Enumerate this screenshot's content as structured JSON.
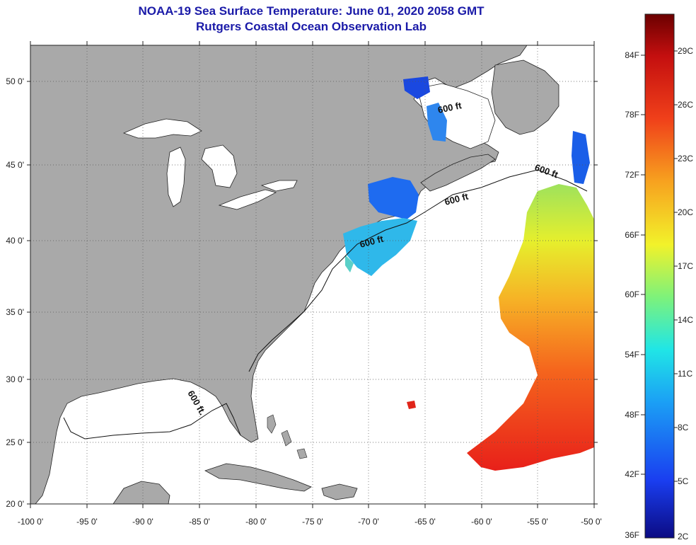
{
  "header": {
    "title": "NOAA-19 Sea Surface Temperature:  June 01, 2020 2058 GMT",
    "subtitle": "Rutgers Coastal Ocean Observation Lab"
  },
  "map": {
    "lon_range": [
      -100,
      -50
    ],
    "lat_range": [
      20,
      52.5
    ],
    "lat_ticks": [
      "50 0'",
      "45 0'",
      "40 0'",
      "35 0'",
      "30 0'",
      "25 0'",
      "20 0'"
    ],
    "lon_ticks": [
      "-100 0'",
      "-95 0'",
      "-90 0'",
      "-85 0'",
      "-80 0'",
      "-75 0'",
      "-70 0'",
      "-65 0'",
      "-60 0'",
      "-55 0'",
      "-50 0'"
    ],
    "contour_labels": [
      "600 ft",
      "600 ft",
      "600 ft",
      "600 ft",
      "600 ft."
    ],
    "colors": {
      "land": "#a9a9a9",
      "grid": "#555555"
    }
  },
  "colorbar": {
    "f_labels": [
      "84F",
      "78F",
      "72F",
      "66F",
      "60F",
      "54F",
      "48F",
      "42F",
      "36F"
    ],
    "c_labels": [
      "29C",
      "26C",
      "23C",
      "20C",
      "17C",
      "14C",
      "11C",
      "8C",
      "5C",
      "2C"
    ],
    "colors": [
      "#0b0b83",
      "#1a3ef0",
      "#1ba0f5",
      "#20e6e6",
      "#7ef27a",
      "#f2f22a",
      "#f7a21f",
      "#f0401a",
      "#c40f0f",
      "#6b0000"
    ]
  }
}
